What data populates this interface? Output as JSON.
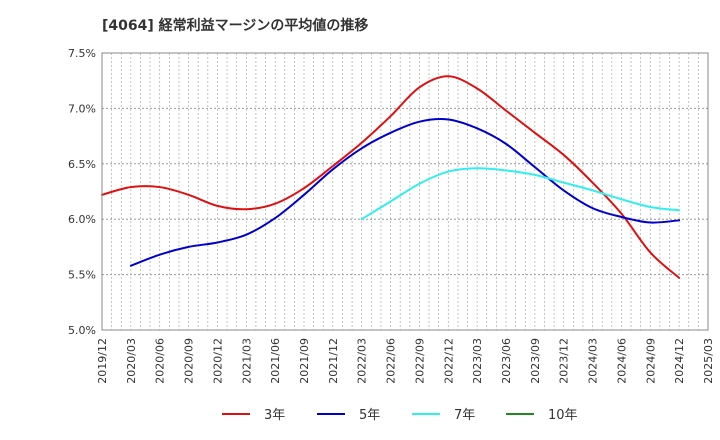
{
  "chart_data": {
    "type": "line",
    "title": "[4064]  経常利益マージンの平均値の推移",
    "xlabel": "",
    "ylabel": "",
    "x": [
      "2019/12",
      "2020/03",
      "2020/06",
      "2020/09",
      "2020/12",
      "2021/03",
      "2021/06",
      "2021/09",
      "2021/12",
      "2022/03",
      "2022/06",
      "2022/09",
      "2022/12",
      "2023/03",
      "2023/06",
      "2023/09",
      "2023/12",
      "2024/03",
      "2024/06",
      "2024/09",
      "2024/12",
      "2025/03"
    ],
    "ylim": [
      5.0,
      7.5
    ],
    "yticks": [
      5.0,
      5.5,
      6.0,
      6.5,
      7.0,
      7.5
    ],
    "ytick_labels": [
      "5.0%",
      "5.5%",
      "6.0%",
      "6.5%",
      "7.0%",
      "7.5%"
    ],
    "grid": true,
    "legend_position": "bottom",
    "series": [
      {
        "name": "3年",
        "color": "#dd1111",
        "values": [
          6.22,
          6.29,
          6.29,
          6.22,
          6.12,
          6.09,
          6.14,
          6.28,
          6.48,
          6.69,
          6.93,
          7.19,
          7.29,
          7.18,
          6.98,
          6.78,
          6.58,
          6.33,
          6.05,
          5.7,
          5.47,
          null
        ]
      },
      {
        "name": "5年",
        "color": "#0000cc",
        "values": [
          null,
          5.58,
          5.68,
          5.75,
          5.79,
          5.86,
          6.01,
          6.22,
          6.45,
          6.64,
          6.78,
          6.88,
          6.9,
          6.82,
          6.68,
          6.47,
          6.26,
          6.1,
          6.02,
          5.97,
          5.99,
          null
        ]
      },
      {
        "name": "7年",
        "color": "#33eeee",
        "values": [
          null,
          null,
          null,
          null,
          null,
          null,
          null,
          null,
          null,
          6.0,
          6.16,
          6.32,
          6.43,
          6.46,
          6.44,
          6.4,
          6.33,
          6.26,
          6.18,
          6.11,
          6.08,
          null
        ]
      },
      {
        "name": "10年",
        "color": "#228822",
        "values": [
          null,
          null,
          null,
          null,
          null,
          null,
          null,
          null,
          null,
          null,
          null,
          null,
          null,
          null,
          null,
          null,
          null,
          null,
          null,
          null,
          null,
          null
        ]
      }
    ]
  }
}
